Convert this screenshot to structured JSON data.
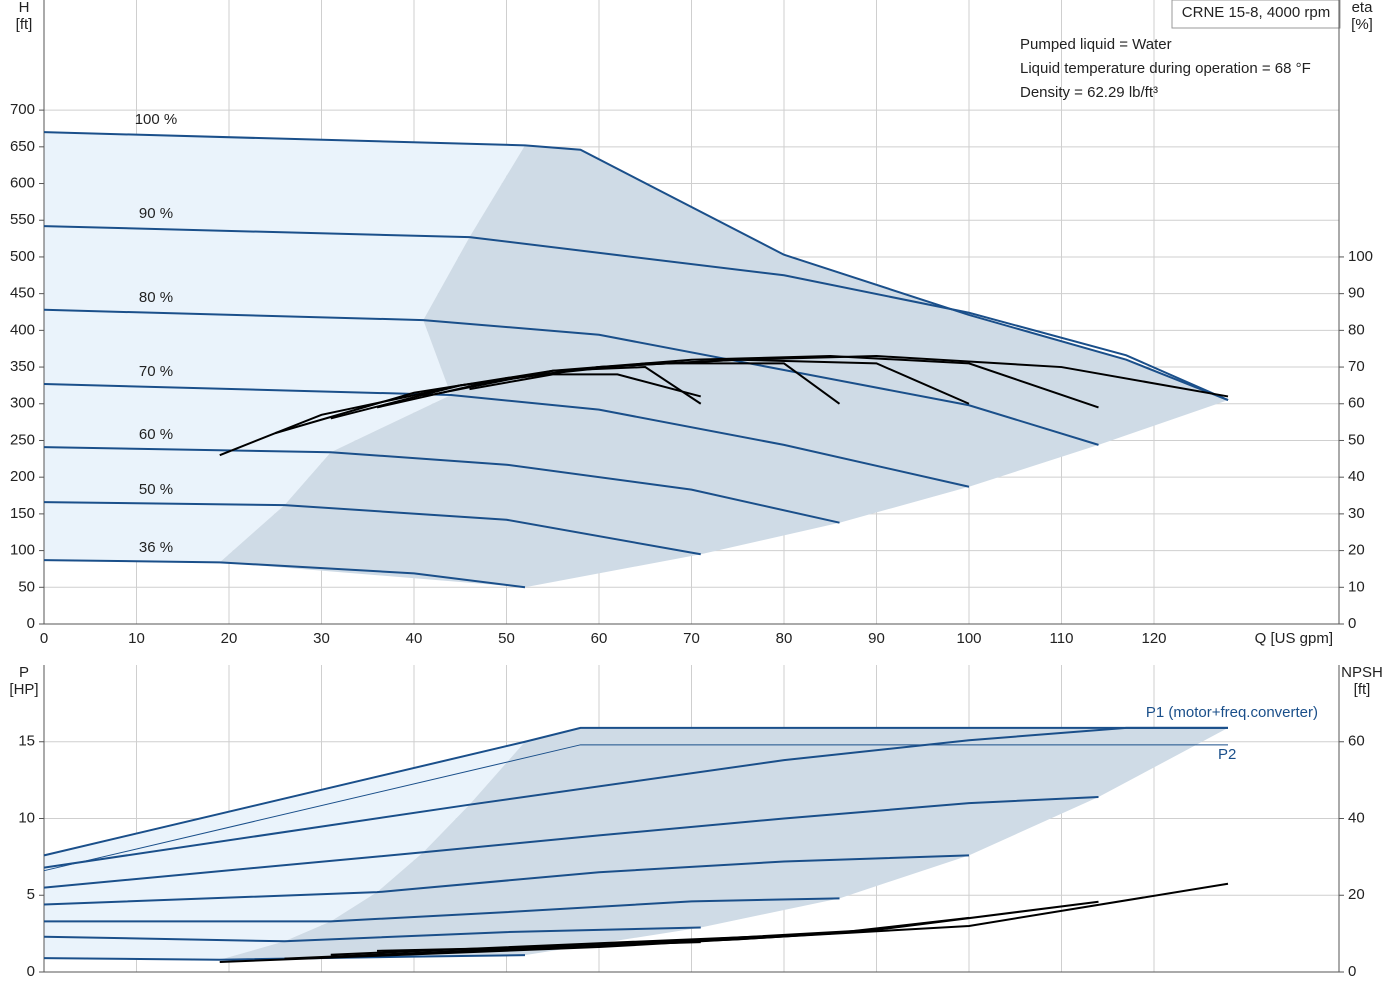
{
  "chart_data": [
    {
      "type": "line",
      "title": "CRNE 15-8, 4000 rpm",
      "notes": [
        "Pumped liquid = Water",
        "Liquid temperature during operation = 68 °F",
        "Density = 62.29 lb/ft³"
      ],
      "xlabel": "Q [US gpm]",
      "ylabel": [
        "H",
        "[ft]"
      ],
      "y2label": [
        "eta",
        "[%]"
      ],
      "xlim": [
        0,
        140
      ],
      "xticks": [
        0,
        10,
        20,
        30,
        40,
        50,
        60,
        70,
        80,
        90,
        100,
        110,
        120
      ],
      "ylim": [
        0,
        850
      ],
      "yticks": [
        0,
        50,
        100,
        150,
        200,
        250,
        300,
        350,
        400,
        450,
        500,
        550,
        600,
        650,
        700
      ],
      "y2lim": [
        0,
        170
      ],
      "y2ticks": [
        0,
        10,
        20,
        30,
        40,
        50,
        60,
        70,
        80,
        90,
        100
      ],
      "grid": true,
      "envelope": true,
      "show_xtick_labels": true,
      "series": [
        {
          "name": "100 %",
          "color": "#1a4f8a",
          "x": [
            0,
            52,
            58,
            80,
            100,
            117,
            128
          ],
          "values": [
            670,
            652,
            646,
            503,
            421,
            360,
            305
          ]
        },
        {
          "name": "90 %",
          "color": "#1a4f8a",
          "x": [
            0,
            46,
            80,
            100,
            117,
            128
          ],
          "values": [
            542,
            527,
            475,
            424,
            366,
            305
          ]
        },
        {
          "name": "80 %",
          "color": "#1a4f8a",
          "x": [
            0,
            41,
            60,
            80,
            100,
            114
          ],
          "values": [
            428,
            414,
            394,
            346,
            298,
            244
          ]
        },
        {
          "name": "70 %",
          "color": "#1a4f8a",
          "x": [
            0,
            44,
            60,
            80,
            100
          ],
          "values": [
            327,
            312,
            292,
            244,
            187
          ]
        },
        {
          "name": "60 %",
          "color": "#1a4f8a",
          "x": [
            0,
            31,
            50,
            70,
            86
          ],
          "values": [
            241,
            234,
            217,
            183,
            138
          ]
        },
        {
          "name": "50 %",
          "color": "#1a4f8a",
          "x": [
            0,
            26,
            50,
            71
          ],
          "values": [
            166,
            162,
            142,
            95
          ]
        },
        {
          "name": "36 %",
          "color": "#1a4f8a",
          "x": [
            0,
            19,
            40,
            52
          ],
          "values": [
            87,
            84,
            69,
            50
          ]
        },
        {
          "color": "#000000",
          "axis": "y2",
          "x": [
            19,
            30,
            45,
            60,
            75,
            90,
            110,
            128
          ],
          "values": [
            46,
            57,
            65,
            70,
            72,
            73,
            70,
            62
          ]
        },
        {
          "color": "#000000",
          "axis": "y2",
          "x": [
            25,
            40,
            55,
            70,
            85,
            100,
            114
          ],
          "values": [
            52,
            63,
            69,
            72,
            73,
            71,
            59
          ]
        },
        {
          "color": "#000000",
          "axis": "y2",
          "x": [
            31,
            45,
            60,
            75,
            90,
            100
          ],
          "values": [
            56,
            65,
            70,
            72,
            71,
            60
          ]
        },
        {
          "color": "#000000",
          "axis": "y2",
          "x": [
            36,
            50,
            65,
            80,
            86
          ],
          "values": [
            59,
            67,
            71,
            71,
            60
          ]
        },
        {
          "color": "#000000",
          "axis": "y2",
          "x": [
            41,
            55,
            65,
            71
          ],
          "values": [
            62,
            69,
            70,
            60
          ]
        },
        {
          "color": "#000000",
          "axis": "y2",
          "x": [
            46,
            55,
            62,
            71
          ],
          "values": [
            64,
            68,
            68,
            62
          ]
        }
      ]
    },
    {
      "type": "line",
      "ylabel": [
        "P",
        "[HP]"
      ],
      "y2label": [
        "NPSH",
        "[ft]"
      ],
      "xlim": [
        0,
        140
      ],
      "xticks": [
        0,
        10,
        20,
        30,
        40,
        50,
        60,
        70,
        80,
        90,
        100,
        110,
        120
      ],
      "ylim": [
        0,
        20
      ],
      "yticks": [
        0,
        5,
        10,
        15
      ],
      "y2lim": [
        0,
        80
      ],
      "y2ticks": [
        0,
        20,
        40,
        60
      ],
      "grid": true,
      "envelope": true,
      "show_xtick_labels": false,
      "series": [
        {
          "name": "P1 (motor+freq.converter)",
          "label_side": "above",
          "color": "#1a4f8a",
          "x": [
            0,
            52,
            58,
            128
          ],
          "values": [
            7.6,
            15,
            15.9,
            15.9
          ]
        },
        {
          "color": "#1a4f8a",
          "x": [
            0,
            46,
            80,
            100,
            117,
            128
          ],
          "values": [
            6.8,
            10.9,
            13.8,
            15.1,
            15.9,
            15.9
          ]
        },
        {
          "color": "#1a4f8a",
          "x": [
            0,
            41,
            60,
            80,
            100,
            114
          ],
          "values": [
            5.5,
            7.8,
            8.9,
            10,
            11,
            11.4
          ]
        },
        {
          "color": "#1a4f8a",
          "x": [
            0,
            36,
            60,
            80,
            100
          ],
          "values": [
            4.4,
            5.2,
            6.5,
            7.2,
            7.6
          ]
        },
        {
          "color": "#1a4f8a",
          "x": [
            0,
            31,
            50,
            70,
            86
          ],
          "values": [
            3.3,
            3.3,
            3.9,
            4.6,
            4.8
          ]
        },
        {
          "color": "#1a4f8a",
          "x": [
            0,
            26,
            50,
            71
          ],
          "values": [
            2.3,
            2,
            2.6,
            2.9
          ]
        },
        {
          "color": "#1a4f8a",
          "x": [
            0,
            19,
            40,
            52
          ],
          "values": [
            0.9,
            0.8,
            1,
            1.1
          ]
        },
        {
          "name": "P2",
          "label_side": "below",
          "style": "thin",
          "color": "#1a4f8a",
          "x": [
            0,
            58,
            128
          ],
          "values": [
            6.6,
            14.8,
            14.8
          ]
        },
        {
          "color": "#000000",
          "axis": "y2",
          "x": [
            19,
            60,
            100,
            128
          ],
          "values": [
            2.6,
            6.5,
            12,
            23
          ]
        },
        {
          "color": "#000000",
          "axis": "y2",
          "x": [
            26,
            60,
            90,
            114
          ],
          "values": [
            3.5,
            7,
            11,
            18.3
          ]
        },
        {
          "color": "#000000",
          "axis": "y2",
          "x": [
            31,
            60,
            85,
            100
          ],
          "values": [
            4.5,
            7.5,
            10,
            14.1
          ]
        },
        {
          "color": "#000000",
          "axis": "y2",
          "x": [
            41,
            60,
            75,
            86
          ],
          "values": [
            5,
            7,
            8.5,
            10.2
          ]
        },
        {
          "color": "#000000",
          "axis": "y2",
          "x": [
            46,
            60,
            71
          ],
          "values": [
            5.8,
            7,
            7.8
          ]
        },
        {
          "color": "#000000",
          "axis": "y2",
          "x": [
            36,
            45,
            52
          ],
          "values": [
            5.5,
            6,
            6.3
          ]
        }
      ]
    }
  ]
}
